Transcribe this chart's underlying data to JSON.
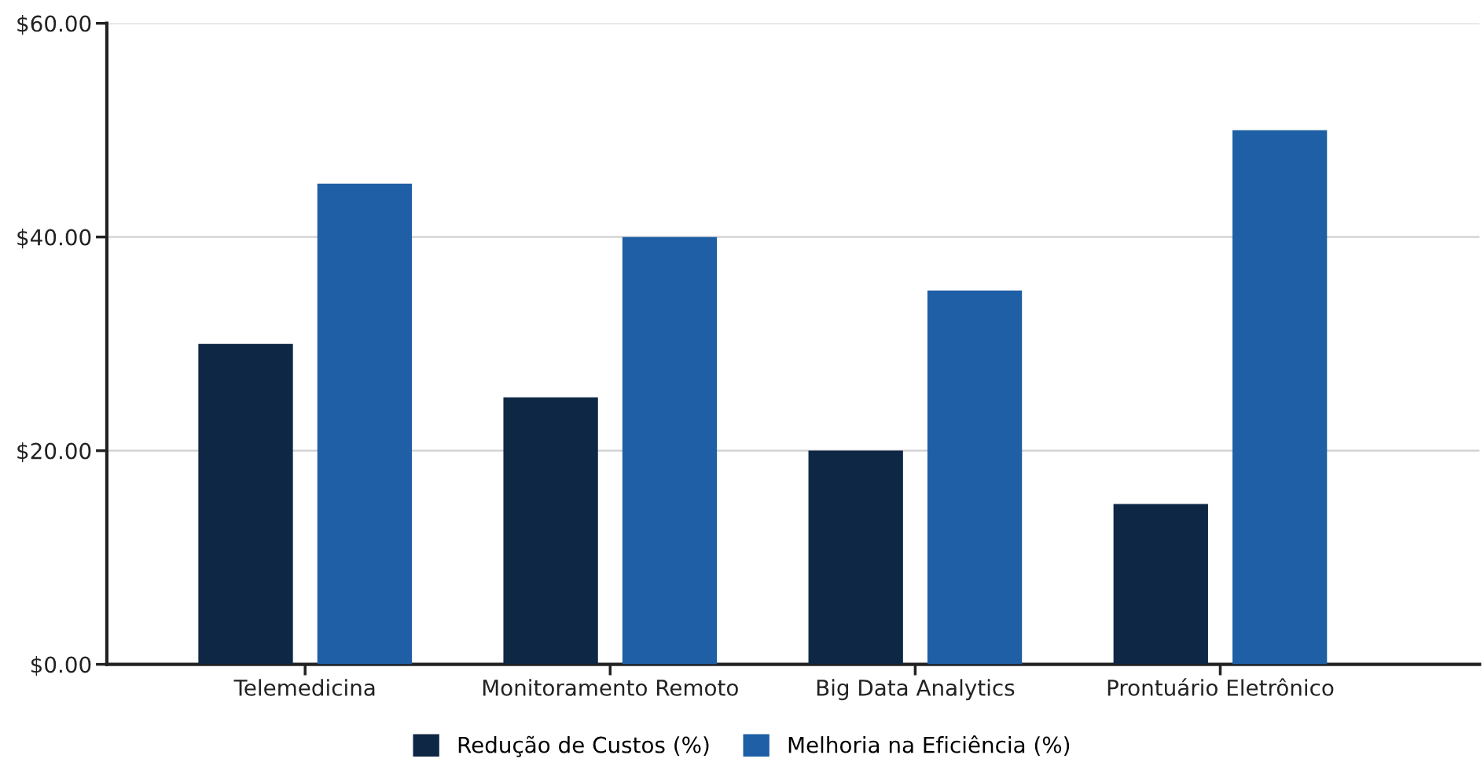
{
  "chart_data": {
    "type": "bar",
    "categories": [
      "Telemedicina",
      "Monitoramento Remoto",
      "Big Data Analytics",
      "Prontuário Eletrônico"
    ],
    "series": [
      {
        "name": "Redução de Custos (%)",
        "color": "#0e2744",
        "values": [
          30,
          25,
          20,
          15
        ]
      },
      {
        "name": "Melhoria na Eficiência (%)",
        "color": "#1f5fa5",
        "values": [
          45,
          40,
          35,
          50
        ]
      }
    ],
    "ylim": [
      0,
      60
    ],
    "yticks": [
      {
        "value": 0,
        "label": "$0.00"
      },
      {
        "value": 20,
        "label": "$20.00"
      },
      {
        "value": 40,
        "label": "$40.00"
      },
      {
        "value": 60,
        "label": "$60.00"
      }
    ],
    "grid": "y",
    "legend": "bottom"
  }
}
